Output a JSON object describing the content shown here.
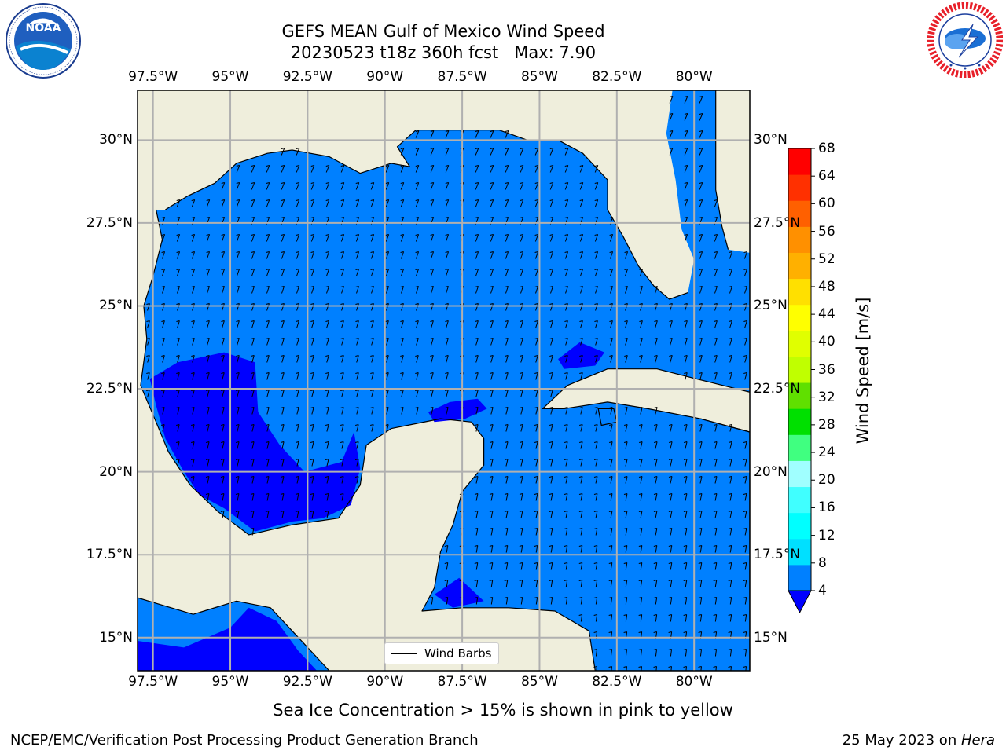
{
  "title": {
    "line1": "GEFS MEAN Gulf of Mexico Wind Speed",
    "line2": "20230523 t18z 360h fcst   Max: 7.90"
  },
  "logos": {
    "left": {
      "name": "noaa-logo",
      "text": "NOAA",
      "ring_text": "NATIONAL OCEANIC AND ATMOSPHERIC ADMINISTRATION · U.S. DEPARTMENT OF COMMERCE"
    },
    "right": {
      "name": "nws-logo",
      "ring_text": "NATIONAL WEATHER SERVICE"
    }
  },
  "map": {
    "lon_range": [
      -98,
      -78.2
    ],
    "lat_range": [
      14,
      31.5
    ],
    "lon_ticks": [
      {
        "value": -97.5,
        "label": "97.5°W"
      },
      {
        "value": -95,
        "label": "95°W"
      },
      {
        "value": -92.5,
        "label": "92.5°W"
      },
      {
        "value": -90,
        "label": "90°W"
      },
      {
        "value": -87.5,
        "label": "87.5°W"
      },
      {
        "value": -85,
        "label": "85°W"
      },
      {
        "value": -82.5,
        "label": "82.5°W"
      },
      {
        "value": -80,
        "label": "80°W"
      }
    ],
    "lat_ticks": [
      {
        "value": 30,
        "label": "30°N"
      },
      {
        "value": 27.5,
        "label": "27.5°N"
      },
      {
        "value": 25,
        "label": "25°N"
      },
      {
        "value": 22.5,
        "label": "22.5°N"
      },
      {
        "value": 20,
        "label": "20°N"
      },
      {
        "value": 17.5,
        "label": "17.5°N"
      },
      {
        "value": 15,
        "label": "15°N"
      }
    ],
    "grid": true,
    "land_color": "#efeedc",
    "coast_color": "#000000",
    "legend": {
      "label": "Wind Barbs",
      "placement": "lower-center"
    }
  },
  "colorbar": {
    "label": "Wind Speed [m/s]",
    "ticks": [
      "68",
      "64",
      "60",
      "56",
      "52",
      "48",
      "44",
      "40",
      "36",
      "32",
      "28",
      "24",
      "20",
      "16",
      "12",
      "8",
      "4"
    ],
    "levels": [
      4,
      8,
      12,
      16,
      20,
      24,
      28,
      32,
      36,
      40,
      44,
      48,
      52,
      56,
      60,
      64,
      68
    ],
    "colors": [
      "#0080ff",
      "#00e0ff",
      "#00ffff",
      "#40ffff",
      "#a0ffff",
      "#40ff80",
      "#00e000",
      "#60e000",
      "#c0ff00",
      "#e0ff00",
      "#ffff00",
      "#ffe000",
      "#ffb000",
      "#ff9000",
      "#ff6000",
      "#ff3000",
      "#ff0000"
    ],
    "under_color": "#0000ff"
  },
  "caption": "Sea Ice Concentration > 15% is shown in pink to yellow",
  "footer": {
    "left": "NCEP/EMC/Verification Post Processing Product Generation Branch",
    "right_prefix": "25 May 2023 on ",
    "right_machine": "Hera"
  },
  "field_colors": {
    "band_4_8": "#0080ff",
    "below_4": "#0000ff"
  }
}
